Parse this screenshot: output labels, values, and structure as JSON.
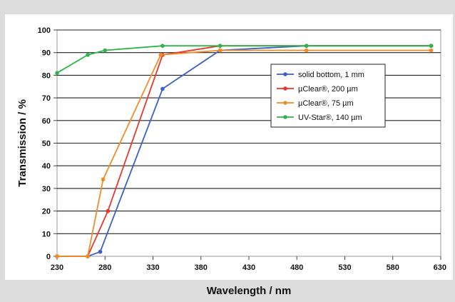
{
  "chart_data": {
    "type": "line",
    "xlabel": "Wavelength / nm",
    "ylabel": "Transmission / %",
    "xlim": [
      230,
      630
    ],
    "ylim": [
      0,
      100
    ],
    "xticks": [
      230,
      280,
      330,
      380,
      430,
      480,
      530,
      580,
      630
    ],
    "yticks": [
      0,
      10,
      20,
      30,
      40,
      50,
      60,
      70,
      80,
      90,
      100
    ],
    "grid": "horizontal",
    "legend_position": "right",
    "series": [
      {
        "name": "solid bottom, 1 mm",
        "color": "#3a5fcd",
        "x": [
          230,
          262,
          275,
          340,
          400,
          490,
          620
        ],
        "y": [
          0,
          0,
          2,
          74,
          91,
          93,
          93
        ]
      },
      {
        "name": "µClear®, 200 µm",
        "color": "#e8372a",
        "x": [
          230,
          262,
          283,
          340,
          400,
          490,
          620
        ],
        "y": [
          0,
          0,
          20,
          89,
          93,
          93,
          93
        ]
      },
      {
        "name": "µClear®, 75 µm",
        "color": "#f28c28",
        "x": [
          230,
          262,
          278,
          338,
          400,
          490,
          620
        ],
        "y": [
          0,
          0,
          34,
          89,
          91,
          91,
          91
        ]
      },
      {
        "name": "UV-Star®, 140 µm",
        "color": "#2db34a",
        "x": [
          230,
          262,
          280,
          340,
          400,
          490,
          620
        ],
        "y": [
          81,
          89,
          91,
          93,
          93,
          93,
          93
        ]
      }
    ]
  }
}
